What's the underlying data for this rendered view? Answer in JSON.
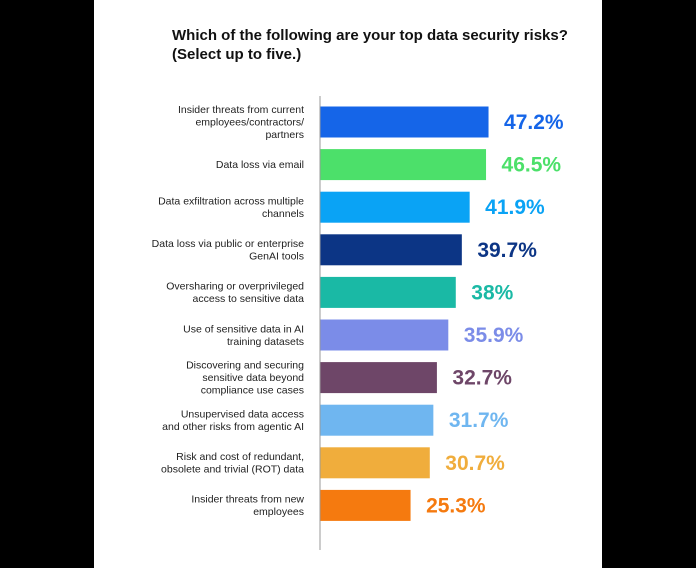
{
  "chart_data": {
    "type": "bar",
    "orientation": "horizontal",
    "title": "Which of the following are your top data security risks? (Select up to five.)",
    "xlabel": "",
    "ylabel": "",
    "unit": "%",
    "xlim": [
      0,
      50
    ],
    "grid": false,
    "legend": "none",
    "categories": [
      [
        "Insider threats from current",
        "employees/contractors/",
        "partners"
      ],
      [
        "Data loss via email"
      ],
      [
        "Data exfiltration across multiple",
        "channels"
      ],
      [
        "Data loss via public or enterprise",
        "GenAI tools"
      ],
      [
        "Oversharing or overprivileged",
        "access to sensitive data"
      ],
      [
        "Use of sensitive data in AI",
        "training datasets"
      ],
      [
        "Discovering and securing",
        "sensitive data beyond",
        "compliance use cases"
      ],
      [
        "Unsupervised data access",
        "and other risks from agentic AI"
      ],
      [
        "Risk and cost of redundant,",
        "obsolete and trivial (ROT) data"
      ],
      [
        "Insider threats from new",
        "employees"
      ]
    ],
    "values": [
      47.2,
      46.5,
      41.9,
      39.7,
      38,
      35.9,
      32.7,
      31.7,
      30.7,
      25.3
    ],
    "value_labels": [
      "47.2%",
      "46.5%",
      "41.9%",
      "39.7%",
      "38%",
      "35.9%",
      "32.7%",
      "31.7%",
      "30.7%",
      "25.3%"
    ],
    "colors": [
      "#1565e8",
      "#4ce06a",
      "#0aa3f5",
      "#0c3585",
      "#1ab9a5",
      "#7b8ce8",
      "#6e4668",
      "#6fb6f0",
      "#f0ad3c",
      "#f57a0f"
    ]
  }
}
